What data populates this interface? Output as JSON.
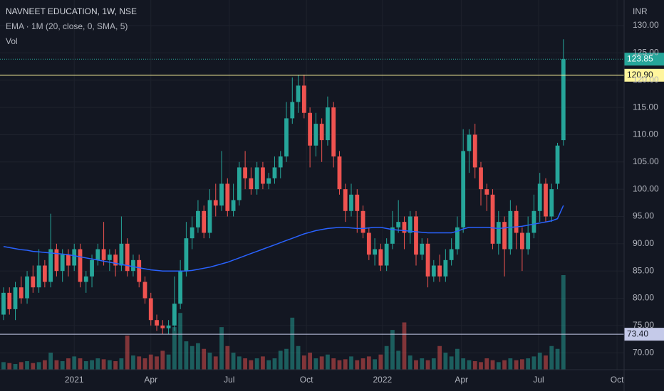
{
  "chart_data": {
    "type": "candlestick",
    "title": "NAVNEET EDUCATION, 1W, NSE",
    "indicator_label": "EMA · 1M (20, close, 0, SMA, 5)",
    "volume_label": "Vol",
    "currency": "INR",
    "up_color": "#26a69a",
    "down_color": "#ef5350",
    "ema_color": "#2962ff",
    "grid": true,
    "x": [
      0,
      1,
      2,
      3,
      4,
      5,
      6,
      7,
      8,
      9,
      10,
      11,
      12,
      13,
      14,
      15,
      16,
      17,
      18,
      19,
      20,
      21,
      22,
      23,
      24,
      25,
      26,
      27,
      28,
      29,
      30,
      31,
      32,
      33,
      34,
      35,
      36,
      37,
      38,
      39,
      40,
      41,
      42,
      43,
      44,
      45,
      46,
      47,
      48,
      49,
      50,
      51,
      52,
      53,
      54,
      55,
      56,
      57,
      58,
      59,
      60,
      61,
      62,
      63,
      64,
      65,
      66,
      67,
      68,
      69,
      70,
      71,
      72,
      73,
      74,
      75,
      76,
      77,
      78,
      79,
      80,
      81,
      82,
      83,
      84,
      85,
      86,
      87,
      88,
      89,
      90,
      91,
      92,
      93,
      94,
      95
    ],
    "open": [
      77,
      81,
      78,
      82,
      80,
      84,
      82,
      86,
      83,
      89,
      85,
      88,
      86,
      89,
      83,
      84,
      87,
      89,
      87,
      88,
      86,
      90,
      85,
      87,
      83,
      80,
      76,
      75,
      74.5,
      75,
      79,
      85,
      91,
      93,
      96,
      92,
      98,
      97,
      101,
      96,
      98,
      104,
      102,
      100,
      104,
      101,
      102,
      104,
      106,
      113,
      116,
      119,
      114,
      108,
      112,
      109,
      115,
      106,
      100,
      96,
      99,
      96,
      92,
      88,
      89,
      86,
      90,
      93,
      94,
      92,
      95,
      88,
      90,
      84,
      86,
      84,
      87,
      89,
      93,
      107,
      110,
      104,
      100,
      99,
      90,
      94,
      89,
      96,
      92,
      89,
      92,
      96,
      101,
      95,
      101,
      109
    ],
    "high": [
      82,
      82,
      83,
      84,
      85,
      86,
      89,
      87,
      95.5,
      90,
      89,
      89,
      90,
      90,
      85,
      88,
      90,
      94,
      89,
      89,
      95,
      91,
      88,
      88,
      84,
      81,
      77,
      76,
      76,
      84,
      87,
      94,
      95,
      98,
      97,
      100,
      101,
      107,
      102,
      101,
      105,
      107,
      104,
      105,
      105,
      103,
      106,
      107,
      116,
      120.5,
      121,
      121,
      115,
      114,
      113,
      117,
      116,
      107,
      101,
      101,
      100,
      97,
      93,
      91,
      90,
      91,
      96,
      98,
      95,
      96,
      96,
      91,
      91,
      87,
      88,
      89,
      91,
      95,
      111,
      111,
      112,
      105,
      101,
      100,
      96,
      95,
      98,
      97,
      93,
      95,
      99,
      103,
      102,
      101,
      108.5,
      127.5
    ],
    "low": [
      76,
      77,
      76,
      79,
      79,
      81,
      81,
      82,
      82,
      84,
      83,
      84,
      85,
      82,
      81,
      82,
      86,
      86,
      85,
      84,
      85,
      84,
      84,
      82,
      79,
      75,
      74,
      73.4,
      73.4,
      74,
      78,
      84,
      89,
      92,
      91,
      91,
      95,
      96,
      95,
      95,
      97,
      100,
      99,
      99,
      100,
      100,
      101,
      102,
      105,
      112,
      114,
      113,
      104,
      106,
      105,
      108,
      104,
      99,
      94,
      95,
      92,
      91,
      87,
      86,
      85,
      85,
      89,
      92,
      89,
      90,
      86,
      87,
      82,
      83,
      83,
      83,
      86,
      88,
      92,
      103,
      102,
      97,
      96,
      89,
      88,
      84,
      88,
      89,
      85,
      88,
      91,
      94,
      94,
      94,
      100,
      108
    ],
    "close": [
      81,
      78,
      82,
      80,
      84,
      82,
      86,
      83,
      89,
      85,
      88,
      86,
      89,
      83,
      84,
      87,
      89,
      87,
      88,
      86,
      90,
      85,
      87,
      83,
      80,
      76,
      75,
      74.5,
      75,
      79,
      85,
      91,
      93,
      96,
      92,
      98,
      97,
      101,
      96,
      98,
      104,
      102,
      100,
      104,
      101,
      102,
      104,
      106,
      113,
      116,
      119,
      114,
      108,
      112,
      109,
      115,
      106,
      100,
      96,
      99,
      96,
      92,
      88,
      89,
      86,
      90,
      93,
      94,
      92,
      95,
      88,
      90,
      84,
      86,
      84,
      87,
      89,
      93,
      107,
      110,
      104,
      100,
      99,
      90,
      94,
      89,
      96,
      92,
      89,
      92,
      96,
      101,
      95,
      100,
      108,
      123.85
    ],
    "ema": [
      89.5,
      89.3,
      89.1,
      88.9,
      88.8,
      88.6,
      88.5,
      88.4,
      88.3,
      88.2,
      88.1,
      88,
      87.8,
      87.6,
      87.4,
      87.2,
      87,
      86.8,
      86.6,
      86.4,
      86.2,
      86,
      85.8,
      85.6,
      85.4,
      85.2,
      85.1,
      85,
      85,
      85,
      85,
      85,
      85.1,
      85.3,
      85.5,
      85.7,
      86,
      86.3,
      86.6,
      87,
      87.4,
      87.8,
      88.2,
      88.6,
      89,
      89.4,
      89.8,
      90.2,
      90.6,
      91,
      91.4,
      91.8,
      92.1,
      92.4,
      92.6,
      92.8,
      92.9,
      93,
      93,
      92.9,
      92.8,
      92.8,
      92.9,
      93,
      93,
      92.8,
      92.6,
      92.5,
      92.4,
      92.3,
      92.2,
      92.1,
      92,
      92,
      92,
      92,
      92,
      92.3,
      92.7,
      93,
      93,
      93,
      93,
      92.9,
      92.8,
      92.9,
      93,
      93.1,
      93.2,
      93.4,
      93.6,
      93.8,
      94,
      94.2,
      94.6,
      97
    ],
    "volume": [
      8,
      7,
      6,
      8,
      9,
      7,
      8,
      10,
      18,
      10,
      9,
      12,
      14,
      12,
      9,
      10,
      12,
      11,
      10,
      9,
      12,
      36,
      15,
      14,
      12,
      16,
      14,
      20,
      16,
      45,
      60,
      30,
      25,
      28,
      22,
      18,
      14,
      45,
      25,
      18,
      14,
      12,
      10,
      12,
      14,
      10,
      12,
      20,
      22,
      55,
      25,
      15,
      18,
      12,
      14,
      16,
      12,
      10,
      11,
      14,
      10,
      12,
      14,
      11,
      16,
      25,
      42,
      20,
      50,
      15,
      10,
      12,
      10,
      12,
      25,
      18,
      14,
      22,
      12,
      10,
      9,
      8,
      12,
      10,
      8,
      10,
      12,
      10,
      11,
      12,
      14,
      18,
      15,
      25,
      22,
      100
    ],
    "vlim": [
      0,
      100
    ],
    "xlim": [
      -0.6,
      105.3
    ],
    "xticks": [
      {
        "value": 12,
        "label": "2021"
      },
      {
        "value": 25,
        "label": "Apr"
      },
      {
        "value": 38.3,
        "label": "Jul"
      },
      {
        "value": 51.4,
        "label": "Oct"
      },
      {
        "value": 64.3,
        "label": "2022"
      },
      {
        "value": 77.7,
        "label": "Apr"
      },
      {
        "value": 90.8,
        "label": "Jul"
      },
      {
        "value": 104.1,
        "label": "Oct"
      }
    ],
    "ylim": [
      66.9,
      134.7
    ],
    "yticks": [
      {
        "value": 70,
        "label": "70.00"
      },
      {
        "value": 75,
        "label": "75.00"
      },
      {
        "value": 80,
        "label": "80.00"
      },
      {
        "value": 85,
        "label": "85.00"
      },
      {
        "value": 90,
        "label": "90.00"
      },
      {
        "value": 95,
        "label": "95.00"
      },
      {
        "value": 100,
        "label": "100.00"
      },
      {
        "value": 105,
        "label": "105.00"
      },
      {
        "value": 110,
        "label": "110.00"
      },
      {
        "value": 115,
        "label": "115.00"
      },
      {
        "value": 120,
        "label": "120.00"
      },
      {
        "value": 125,
        "label": "125.00"
      },
      {
        "value": 130,
        "label": "130.00"
      }
    ],
    "last_price": 123.85,
    "levels": [
      {
        "value": 120.9,
        "label": "120.90",
        "color": "#fff59d"
      },
      {
        "value": 73.4,
        "label": "73.40",
        "color": "#c5cae9"
      }
    ]
  }
}
